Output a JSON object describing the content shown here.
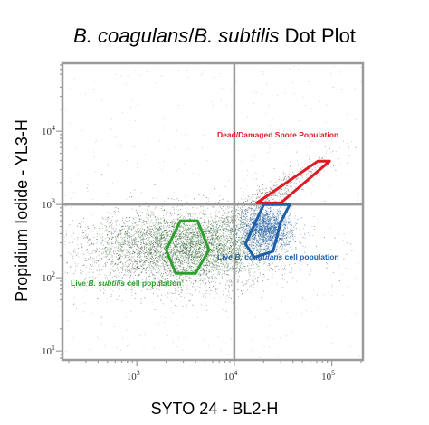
{
  "chart_data": {
    "type": "scatter",
    "title": {
      "italic_part_1": "B. coagulans",
      "separator": "/",
      "italic_part_2": "B. subtilis",
      "plain_part": " Dot Plot"
    },
    "xlabel": "SYTO 24 - BL2-H",
    "ylabel": "Propidium Iodide - YL3-H",
    "x_scale": "log",
    "y_scale": "log",
    "xlim": [
      180,
      200000
    ],
    "ylim": [
      8,
      80000
    ],
    "x_ticks": [
      {
        "value": 1000,
        "base": "10",
        "exp": "3"
      },
      {
        "value": 10000,
        "base": "10",
        "exp": "4"
      },
      {
        "value": 100000,
        "base": "10",
        "exp": "5"
      }
    ],
    "y_ticks": [
      {
        "value": 10,
        "base": "10",
        "exp": "1"
      },
      {
        "value": 100,
        "base": "10",
        "exp": "2"
      },
      {
        "value": 1000,
        "base": "10",
        "exp": "3"
      },
      {
        "value": 10000,
        "base": "10",
        "exp": "4"
      }
    ],
    "quadrant_lines": {
      "x": 10000,
      "y": 1000
    },
    "grid": false,
    "gates": [
      {
        "name": "Dead/Damaged Spore Population",
        "color": "#e01b24",
        "label_parts": [
          {
            "text": "Dead/Damaged Spore Population",
            "italic": false
          }
        ],
        "polygon": [
          [
            17000,
            1050
          ],
          [
            72000,
            3900
          ],
          [
            95000,
            3900
          ],
          [
            30000,
            1050
          ]
        ]
      },
      {
        "name": "Live B. coagulans cell population",
        "color": "#1f5fa8",
        "label_parts": [
          {
            "text": "Live ",
            "italic": false
          },
          {
            "text": "B. coagulans",
            "italic": true
          },
          {
            "text": " cell population",
            "italic": false
          }
        ],
        "polygon": [
          [
            20000,
            1000
          ],
          [
            37000,
            1000
          ],
          [
            30000,
            580
          ],
          [
            25000,
            230
          ],
          [
            16000,
            190
          ],
          [
            13000,
            290
          ]
        ]
      },
      {
        "name": "Live B. subtilis cell population",
        "color": "#2ca02c",
        "label_parts": [
          {
            "text": "Live ",
            "italic": false
          },
          {
            "text": "B. subtilis",
            "italic": true
          },
          {
            "text": " cell population",
            "italic": false
          }
        ],
        "polygon": [
          [
            2800,
            600
          ],
          [
            4200,
            600
          ],
          [
            5500,
            240
          ],
          [
            4000,
            115
          ],
          [
            2500,
            115
          ],
          [
            2000,
            240
          ]
        ]
      }
    ],
    "populations": [
      {
        "name": "B. subtilis cloud",
        "center": [
          3600,
          280
        ],
        "spread_log": [
          0.42,
          0.22
        ],
        "count": 2800,
        "color": "#2e7d32"
      },
      {
        "name": "B. coagulans cloud",
        "center": [
          21000,
          470
        ],
        "spread_log": [
          0.13,
          0.14
        ],
        "count": 1700,
        "color": "#1f5fa8"
      },
      {
        "name": "diffuse background",
        "center": [
          2500,
          230
        ],
        "spread_log": [
          0.55,
          0.28
        ],
        "count": 2600,
        "color": "#555555"
      },
      {
        "name": "diagonal streak",
        "center": [
          18000,
          1100
        ],
        "spread_log": [
          0.35,
          0.3
        ],
        "count": 700,
        "color": "#666666"
      }
    ]
  },
  "style": {
    "axis_frame_color": "#9a9a9a",
    "quadrant_line_color": "#9a9a9a",
    "dot_background_color": "#555555"
  }
}
